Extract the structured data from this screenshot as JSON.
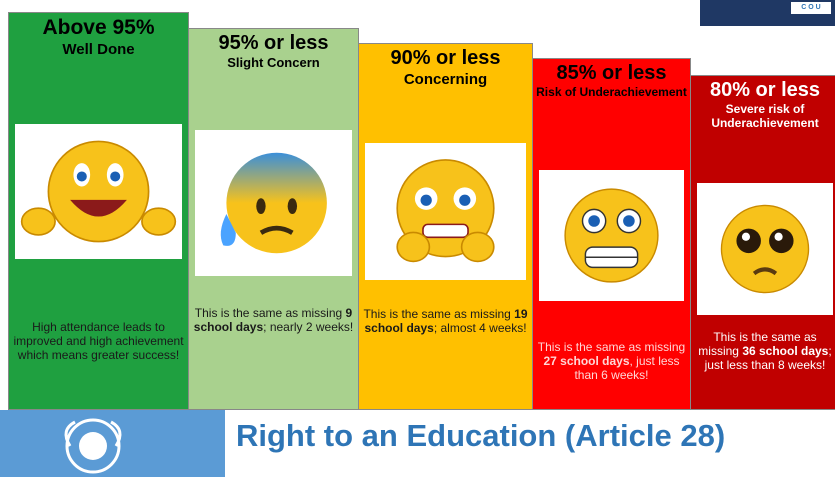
{
  "logo_text": "C O U",
  "panels": [
    {
      "heading": "Above 95%",
      "subheading": "Well Done",
      "text": "High attendance leads to improved and high achievement which means greater success!"
    },
    {
      "heading": "95% or less",
      "subheading": "Slight Concern",
      "text_before": "This is the same as missing ",
      "bold": "9 school days",
      "text_after": "; nearly 2 weeks!"
    },
    {
      "heading": "90% or less",
      "subheading": "Concerning",
      "text_before": "This is the same as missing ",
      "bold": "19 school days",
      "text_after": "; almost 4 weeks!"
    },
    {
      "heading": "85% or less",
      "subheading": "Risk of Underachievement",
      "text_before": "This is the same as missing ",
      "bold": "27 school days",
      "text_after": ", just less than 6 weeks!"
    },
    {
      "heading": "80% or less",
      "subheading": "Severe risk of Underachievement",
      "text_before": "This is the same as missing ",
      "bold": "36 school days",
      "text_after": "; just less than 8 weeks!"
    }
  ],
  "footer": {
    "title": "Right to an Education (Article 28)"
  }
}
